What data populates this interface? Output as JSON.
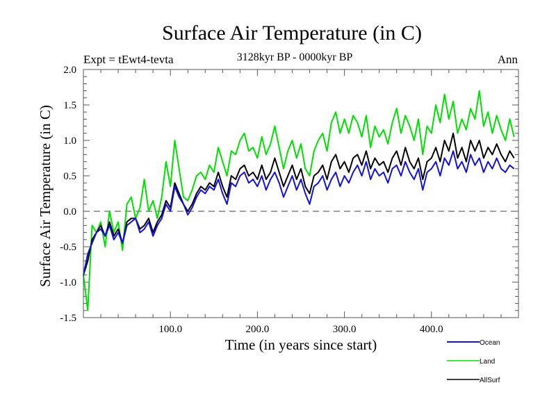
{
  "chart_data": {
    "type": "line",
    "title": "Surface Air Temperature (in C)",
    "subtitle": "3128kyr BP - 0000kyr BP",
    "left_annotation": "Expt = tEwt4-tevta",
    "right_annotation": "Ann",
    "xlabel": "Time (in years since start)",
    "ylabel": "Surface Air Temperature (in C)",
    "xlim": [
      0,
      500
    ],
    "ylim": [
      -1.5,
      2.0
    ],
    "x_ticks": [
      100,
      200,
      300,
      400
    ],
    "x_tick_labels": [
      "100.0",
      "200.0",
      "300.0",
      "400.0"
    ],
    "y_ticks": [
      -1.5,
      -1.0,
      -0.5,
      0.0,
      0.5,
      1.0,
      1.5,
      2.0
    ],
    "y_tick_labels": [
      "-1.5",
      "-1.0",
      "-0.5",
      "0.0",
      "0.5",
      "1.0",
      "1.5",
      "2.0"
    ],
    "reference_line": {
      "y": 0.0,
      "style": "dashed",
      "color": "#808080"
    },
    "legend_position": "bottom-right",
    "x_step": 5,
    "x_start": 0,
    "series": [
      {
        "name": "Ocean",
        "color": "#1010e0",
        "values": [
          -0.9,
          -0.6,
          -0.45,
          -0.3,
          -0.25,
          -0.35,
          -0.2,
          -0.4,
          -0.3,
          -0.45,
          -0.2,
          -0.15,
          -0.1,
          -0.3,
          -0.25,
          -0.15,
          -0.35,
          -0.2,
          -0.1,
          0.1,
          0.0,
          0.35,
          0.2,
          0.1,
          -0.05,
          0.05,
          0.2,
          0.3,
          0.25,
          0.35,
          0.3,
          0.45,
          0.25,
          0.1,
          0.4,
          0.35,
          0.5,
          0.55,
          0.4,
          0.45,
          0.35,
          0.5,
          0.3,
          0.45,
          0.55,
          0.4,
          0.2,
          0.35,
          0.5,
          0.3,
          0.45,
          0.25,
          0.1,
          0.35,
          0.4,
          0.5,
          0.3,
          0.45,
          0.55,
          0.35,
          0.5,
          0.4,
          0.55,
          0.65,
          0.5,
          0.7,
          0.45,
          0.6,
          0.5,
          0.55,
          0.4,
          0.6,
          0.65,
          0.5,
          0.7,
          0.55,
          0.45,
          0.6,
          0.3,
          0.55,
          0.6,
          0.7,
          0.5,
          0.75,
          0.65,
          0.85,
          0.6,
          0.7,
          0.55,
          0.8,
          0.65,
          0.75,
          0.55,
          0.7,
          0.6,
          0.75,
          0.6,
          0.55,
          0.65,
          0.6
        ]
      },
      {
        "name": "Land",
        "color": "#00e000",
        "values": [
          -0.9,
          -1.4,
          -0.2,
          -0.3,
          -0.15,
          -0.5,
          0.0,
          -0.3,
          -0.15,
          -0.55,
          0.1,
          0.2,
          -0.1,
          0.05,
          0.45,
          0.0,
          0.15,
          -0.1,
          0.2,
          0.7,
          0.35,
          1.0,
          0.6,
          0.2,
          0.15,
          0.3,
          0.5,
          0.55,
          0.45,
          0.65,
          0.55,
          0.9,
          0.7,
          0.5,
          0.85,
          0.8,
          1.0,
          1.1,
          0.85,
          0.9,
          0.75,
          1.05,
          0.8,
          0.95,
          1.2,
          0.9,
          0.6,
          0.85,
          1.0,
          0.75,
          0.95,
          0.6,
          0.5,
          0.85,
          1.0,
          1.1,
          0.85,
          1.25,
          1.4,
          1.1,
          1.3,
          1.1,
          1.35,
          1.25,
          1.05,
          1.35,
          0.9,
          1.2,
          1.05,
          1.15,
          0.95,
          1.25,
          1.45,
          1.1,
          1.35,
          1.2,
          1.0,
          1.3,
          0.8,
          1.2,
          1.1,
          1.5,
          1.25,
          1.65,
          1.3,
          1.55,
          1.1,
          1.3,
          1.15,
          1.45,
          1.3,
          1.7,
          1.2,
          1.4,
          1.1,
          1.35,
          1.15,
          1.0,
          1.3,
          1.05
        ]
      },
      {
        "name": "AllSurf",
        "color": "#000000",
        "values": [
          -0.9,
          -0.7,
          -0.4,
          -0.3,
          -0.2,
          -0.35,
          -0.15,
          -0.35,
          -0.25,
          -0.45,
          -0.15,
          -0.1,
          -0.1,
          -0.25,
          -0.2,
          -0.1,
          -0.3,
          -0.15,
          -0.05,
          0.15,
          0.05,
          0.4,
          0.25,
          0.1,
          0.0,
          0.1,
          0.25,
          0.35,
          0.3,
          0.4,
          0.35,
          0.55,
          0.35,
          0.2,
          0.5,
          0.45,
          0.6,
          0.65,
          0.5,
          0.55,
          0.45,
          0.65,
          0.45,
          0.55,
          0.75,
          0.55,
          0.35,
          0.5,
          0.65,
          0.45,
          0.6,
          0.35,
          0.25,
          0.5,
          0.55,
          0.65,
          0.45,
          0.7,
          0.8,
          0.6,
          0.7,
          0.55,
          0.75,
          0.8,
          0.65,
          0.85,
          0.6,
          0.75,
          0.65,
          0.7,
          0.55,
          0.75,
          0.85,
          0.65,
          0.9,
          0.7,
          0.6,
          0.75,
          0.45,
          0.7,
          0.75,
          0.9,
          0.7,
          1.0,
          0.85,
          1.1,
          0.75,
          0.9,
          0.7,
          1.0,
          0.85,
          1.0,
          0.75,
          0.9,
          0.8,
          0.95,
          0.8,
          0.7,
          0.85,
          0.75
        ]
      }
    ]
  }
}
